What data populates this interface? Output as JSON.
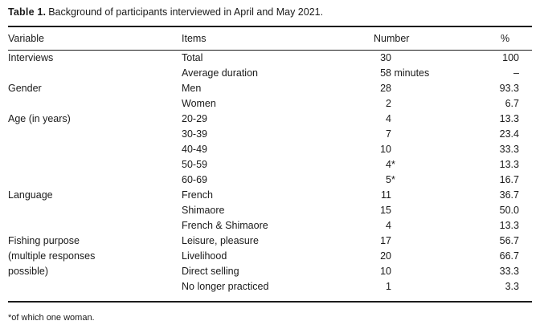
{
  "table": {
    "title_label": "Table 1.",
    "title_text": "Background of participants interviewed in April and May 2021.",
    "columns": [
      "Variable",
      "Items",
      "Number",
      "%"
    ],
    "rows": [
      {
        "variable": "Interviews",
        "item": "Total",
        "num": "30",
        "num_suffix": "",
        "pct": "100"
      },
      {
        "variable": "",
        "item": "Average duration",
        "num": "58",
        "num_suffix": " minutes",
        "pct": "–"
      },
      {
        "variable": "Gender",
        "item": "Men",
        "num": "28",
        "num_suffix": "",
        "pct": "93.3"
      },
      {
        "variable": "",
        "item": "Women",
        "num": "2",
        "num_suffix": "",
        "pct": "6.7"
      },
      {
        "variable": "Age (in years)",
        "item": "20-29",
        "num": "4",
        "num_suffix": "",
        "pct": "13.3"
      },
      {
        "variable": "",
        "item": "30-39",
        "num": "7",
        "num_suffix": "",
        "pct": "23.4"
      },
      {
        "variable": "",
        "item": "40-49",
        "num": "10",
        "num_suffix": "",
        "pct": "33.3"
      },
      {
        "variable": "",
        "item": "50-59",
        "num": "4",
        "num_suffix": "*",
        "pct": "13.3"
      },
      {
        "variable": "",
        "item": "60-69",
        "num": "5",
        "num_suffix": "*",
        "pct": "16.7"
      },
      {
        "variable": "Language",
        "item": "French",
        "num": "11",
        "num_suffix": "",
        "pct": "36.7"
      },
      {
        "variable": "",
        "item": "Shimaore",
        "num": "15",
        "num_suffix": "",
        "pct": "50.0"
      },
      {
        "variable": "",
        "item": "French & Shimaore",
        "num": "4",
        "num_suffix": "",
        "pct": "13.3"
      },
      {
        "variable": "Fishing purpose",
        "item": "Leisure, pleasure",
        "num": "17",
        "num_suffix": "",
        "pct": "56.7"
      },
      {
        "variable": "(multiple responses",
        "item": "Livelihood",
        "num": "20",
        "num_suffix": "",
        "pct": "66.7"
      },
      {
        "variable": "possible)",
        "item": "Direct selling",
        "num": "10",
        "num_suffix": "",
        "pct": "33.3"
      },
      {
        "variable": "",
        "item": "No longer practiced",
        "num": "1",
        "num_suffix": "",
        "pct": "3.3"
      }
    ],
    "footnote": "*of which one woman."
  }
}
